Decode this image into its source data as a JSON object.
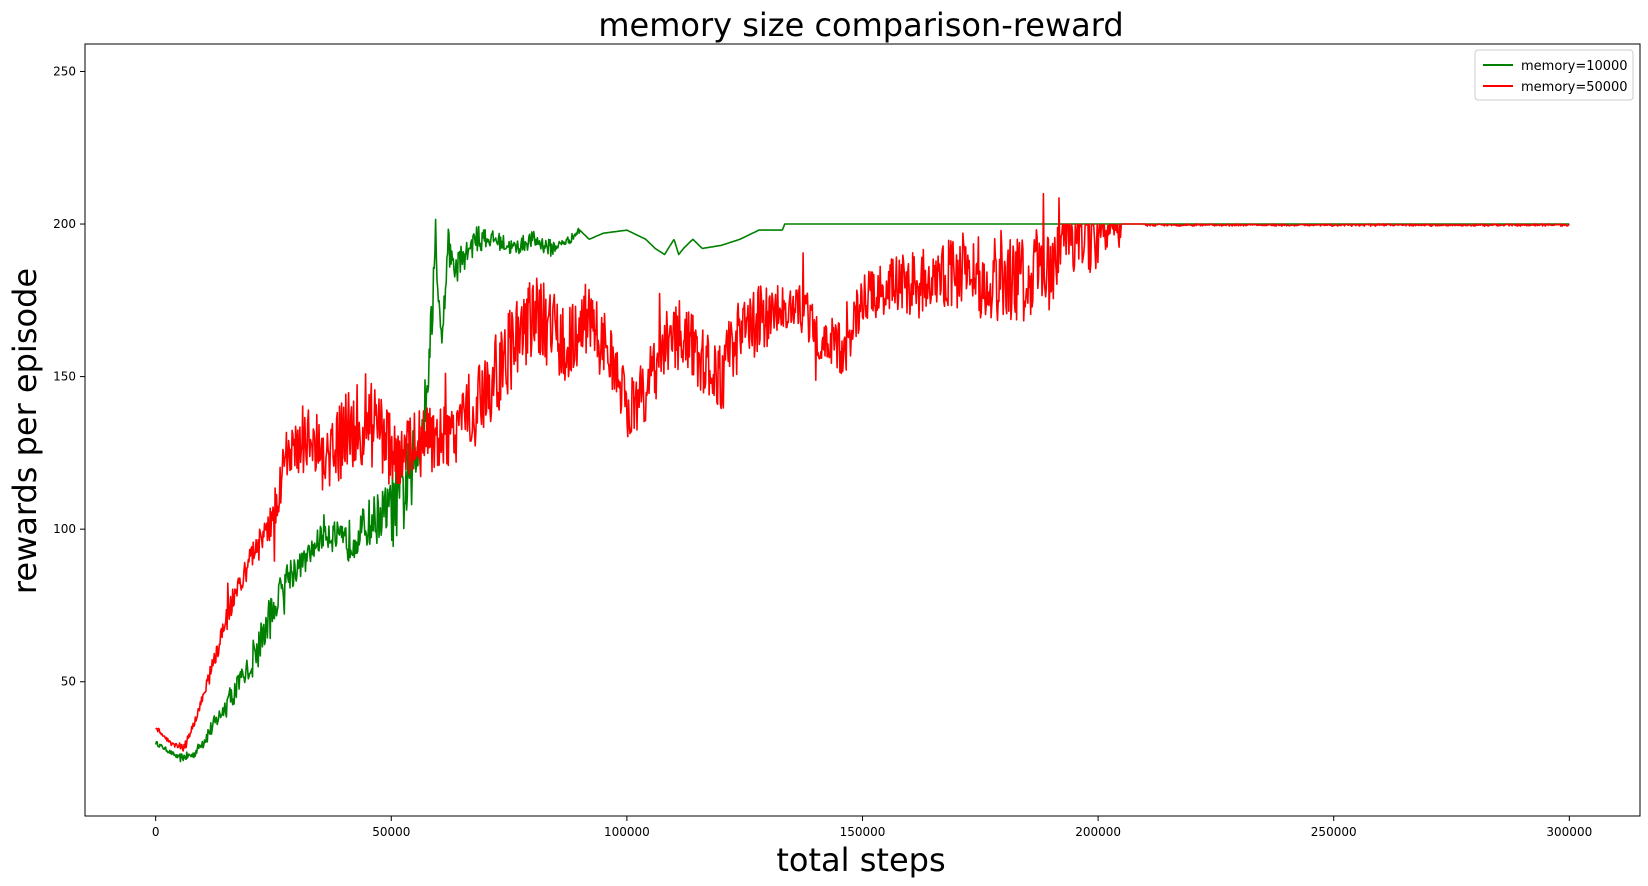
{
  "chart_data": {
    "type": "line",
    "title": "memory size comparison-reward",
    "xlabel": "total steps",
    "ylabel": "rewards per episode",
    "xlim": [
      -15000,
      315000
    ],
    "ylim": [
      6,
      259
    ],
    "xticks": [
      0,
      50000,
      100000,
      150000,
      200000,
      250000,
      300000
    ],
    "yticks": [
      50,
      100,
      150,
      200,
      250
    ],
    "grid": false,
    "legend_position": "top-right",
    "series": [
      {
        "name": "memory=10000",
        "color": "#008000",
        "noise": [
          0.5,
          1,
          2,
          3,
          5,
          4,
          3,
          4,
          5,
          6,
          10,
          8,
          4,
          3,
          2,
          2,
          2,
          1,
          0,
          0
        ],
        "x": [
          0,
          2000,
          5000,
          8000,
          12000,
          16000,
          20000,
          24000,
          28000,
          32000,
          36000,
          40000,
          44000,
          48000,
          52000,
          55000,
          57000,
          58500,
          59500,
          60500,
          61500,
          62000,
          63000,
          65000,
          68000,
          72000,
          76000,
          80000,
          84000,
          88000,
          90000,
          92000,
          95000,
          100000,
          104000,
          106000,
          108000,
          110000,
          111000,
          112000,
          114000,
          116000,
          120000,
          124000,
          128000,
          131000,
          133000,
          133500,
          300000
        ],
        "y": [
          30,
          28,
          25,
          26,
          35,
          45,
          55,
          70,
          85,
          90,
          100,
          95,
          100,
          105,
          110,
          120,
          140,
          165,
          200,
          160,
          180,
          195,
          185,
          188,
          195,
          195,
          192,
          195,
          192,
          195,
          198,
          195,
          197,
          198,
          195,
          192,
          190,
          195,
          190,
          192,
          195,
          192,
          193,
          195,
          198,
          198,
          198,
          200,
          200
        ]
      },
      {
        "name": "memory=50000",
        "color": "#ff0000",
        "noise": [
          0.5,
          1,
          2,
          3,
          4,
          6,
          8,
          10,
          12,
          10,
          8,
          8,
          8,
          9,
          10,
          10,
          10,
          9,
          9,
          8,
          8,
          8,
          8,
          8,
          9,
          8,
          6,
          6,
          6,
          6,
          6,
          7,
          8,
          8,
          9,
          10,
          10,
          10,
          10,
          12,
          6,
          0,
          0.5
        ],
        "x": [
          0,
          3000,
          6000,
          9000,
          12000,
          16000,
          20000,
          24000,
          28000,
          32000,
          36000,
          40000,
          44000,
          48000,
          52000,
          56000,
          60000,
          64000,
          68000,
          72000,
          76000,
          80000,
          84000,
          88000,
          92000,
          96000,
          100000,
          104000,
          108000,
          112000,
          116000,
          120000,
          124000,
          130000,
          136000,
          140000,
          146000,
          150000,
          156000,
          162000,
          170000,
          178000,
          184000,
          188000,
          191000,
          192000,
          300000
        ],
        "y": [
          35,
          30,
          28,
          40,
          55,
          75,
          90,
          100,
          125,
          130,
          125,
          130,
          135,
          130,
          125,
          128,
          130,
          132,
          140,
          150,
          160,
          170,
          165,
          160,
          170,
          160,
          140,
          145,
          160,
          165,
          155,
          150,
          165,
          170,
          175,
          165,
          158,
          175,
          180,
          180,
          185,
          182,
          182,
          185,
          185,
          200,
          200
        ]
      }
    ]
  }
}
